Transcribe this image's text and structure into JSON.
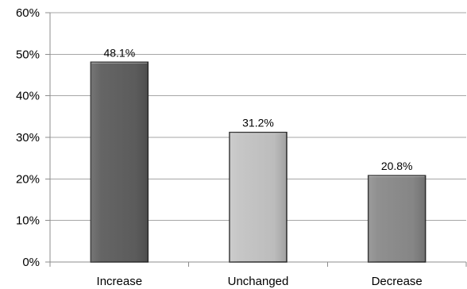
{
  "chart_data": {
    "type": "bar",
    "title": "",
    "xlabel": "",
    "ylabel": "",
    "categories": [
      "Increase",
      "Unchanged",
      "Decrease"
    ],
    "values": [
      48.1,
      31.2,
      20.8
    ],
    "data_labels": [
      "48.1%",
      "31.2%",
      "20.8%"
    ],
    "ylim": [
      0,
      60
    ],
    "yticks": [
      0,
      10,
      20,
      30,
      40,
      50,
      60
    ],
    "ytick_labels": [
      "0%",
      "10%",
      "20%",
      "30%",
      "40%",
      "50%",
      "60%"
    ],
    "grid": true,
    "legend": "none",
    "colors": {
      "bars": [
        "#5f5f5f",
        "#c4c4c4",
        "#8b8b8b"
      ],
      "bar_stroke": "#2f2f2f",
      "grid": "#a6a6a6",
      "axis": "#8c8c8c"
    }
  }
}
